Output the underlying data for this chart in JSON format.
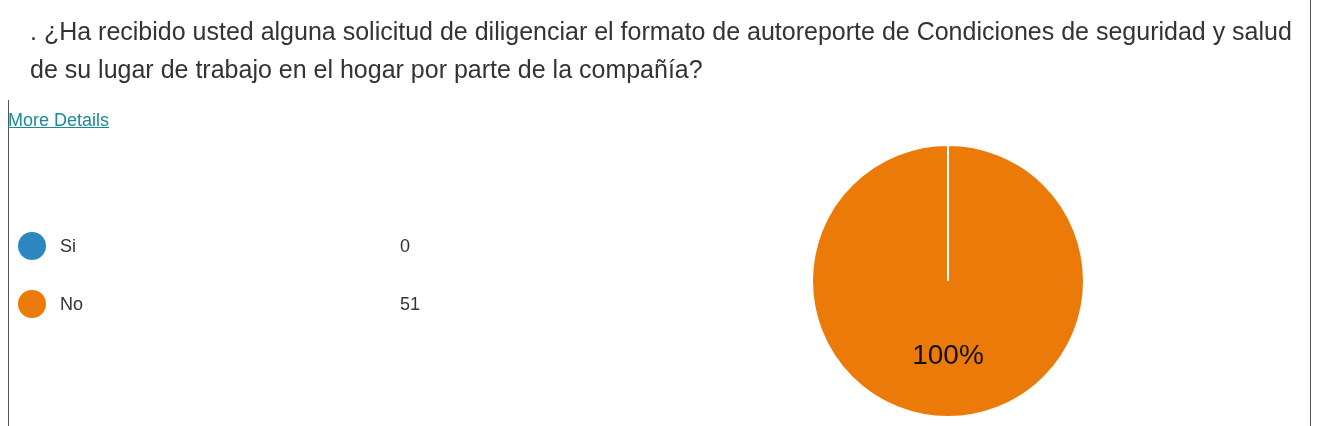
{
  "chart_data": {
    "type": "pie",
    "title": ". ¿Ha recibido usted alguna solicitud de diligenciar el formato de autoreporte de Condiciones de seguridad y salud de su lugar de trabajo en el hogar por parte de la compañía?",
    "annotations": [
      "More Details",
      {
        "text": "100%",
        "x": "No"
      }
    ],
    "categories": [
      "Si",
      "No"
    ],
    "values": [
      0,
      51
    ],
    "colors": [
      "#2e86c1",
      "#ec7a08"
    ],
    "value_labels": [
      "0",
      "51"
    ],
    "legend": "left"
  }
}
